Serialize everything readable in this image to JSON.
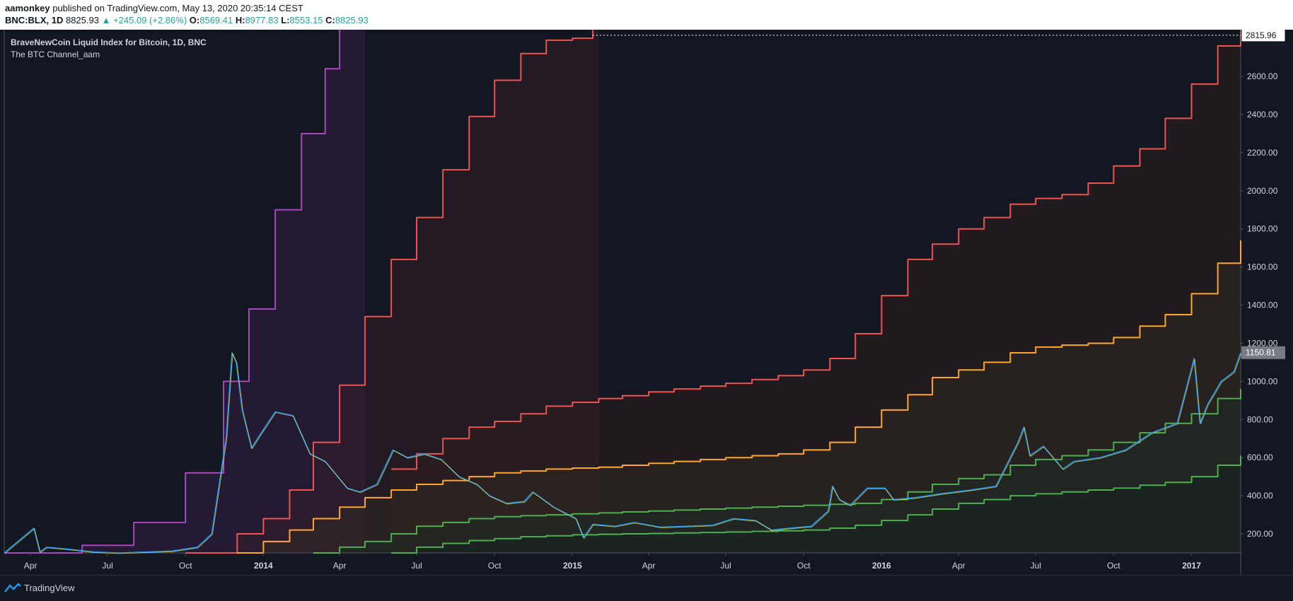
{
  "header": {
    "author": "aamonkey",
    "published_text": "published on TradingView.com, May 13, 2020 20:35:14 CEST",
    "symbol": "BNC:BLX, 1D",
    "last": "8825.93",
    "change": "▲ +245.09 (+2.86%)",
    "o_label": "O:",
    "o_value": "8569.41",
    "h_label": "H:",
    "h_value": "8977.83",
    "l_label": "L:",
    "l_value": "8553.15",
    "c_label": "C:",
    "c_value": "8825.93"
  },
  "legend": {
    "title": "BraveNewCoin Liquid Index for Bitcoin, 1D, BNC",
    "indicator": "The BTC Channel_aam"
  },
  "footer": {
    "brand": "TradingView"
  },
  "colors": {
    "background": "#131722",
    "purple": "#ab47bc",
    "red": "#ef5350",
    "orange": "#ffa726",
    "green": "#4caf50",
    "candle_up": "#2196f3",
    "candle_down": "#ffeb3b"
  },
  "chart_data": {
    "type": "line",
    "title": "BraveNewCoin Liquid Index for Bitcoin, 1D, BNC",
    "ylim": [
      100,
      2860
    ],
    "xlim": [
      "2013-03-01",
      "2017-02-28"
    ],
    "y_ticks": [
      200,
      400,
      600,
      800,
      1000,
      1200,
      1400,
      1600,
      1800,
      2000,
      2200,
      2400,
      2600
    ],
    "y_tick_labels": [
      "200.00",
      "400.00",
      "600.00",
      "800.00",
      "1000.00",
      "1200.00",
      "1400.00",
      "1600.00",
      "1800.00",
      "2000.00",
      "2200.00",
      "2400.00",
      "2600.00"
    ],
    "x_ticks": [
      "2013-04",
      "2013-07",
      "2013-10",
      "2014-01",
      "2014-04",
      "2014-07",
      "2014-10",
      "2015-01",
      "2015-04",
      "2015-07",
      "2015-10",
      "2016-01",
      "2016-04",
      "2016-07",
      "2016-10",
      "2017-01"
    ],
    "x_tick_labels": [
      "Apr",
      "Jul",
      "Oct",
      "2014",
      "Apr",
      "Jul",
      "Oct",
      "2015",
      "Apr",
      "Jul",
      "Oct",
      "2016",
      "Apr",
      "Jul",
      "Oct",
      "2017"
    ],
    "price_labels": [
      {
        "value": 2815.96,
        "text": "2815.96"
      },
      {
        "value": 1150.81,
        "text": "1150.81"
      }
    ],
    "series": [
      {
        "color": "#ab47bc",
        "x": [
          "2013-03-01",
          "2013-06-01",
          "2013-08-01",
          "2013-10-01",
          "2013-11-15",
          "2013-12-15",
          "2014-01-15",
          "2014-02-15",
          "2014-03-15",
          "2014-04-01",
          "2014-05-01"
        ],
        "y": [
          100,
          140,
          260,
          520,
          1000,
          1380,
          1900,
          2300,
          2640,
          2860,
          2860
        ]
      },
      {
        "color": "#ef5350",
        "x": [
          "2013-10-01",
          "2013-12-01",
          "2014-01-01",
          "2014-02-01",
          "2014-03-01",
          "2014-04-01",
          "2014-05-01",
          "2014-06-01",
          "2014-07-01",
          "2014-08-01",
          "2014-09-01",
          "2014-10-01",
          "2014-11-01",
          "2014-12-01",
          "2015-01-01",
          "2015-01-25",
          "2015-02-01"
        ],
        "y": [
          100,
          200,
          280,
          430,
          680,
          980,
          1340,
          1640,
          1860,
          2110,
          2390,
          2580,
          2720,
          2790,
          2800,
          2860,
          2860
        ]
      },
      {
        "color": "#ef5350",
        "x": [
          "2014-06-01",
          "2014-07-01",
          "2014-08-01",
          "2014-09-01",
          "2014-10-01",
          "2014-11-01",
          "2014-12-01",
          "2015-01-01",
          "2015-02-01",
          "2015-03-01",
          "2015-04-01",
          "2015-05-01",
          "2015-06-01",
          "2015-07-01",
          "2015-08-01",
          "2015-09-01",
          "2015-10-01",
          "2015-11-01",
          "2015-12-01",
          "2016-01-01",
          "2016-02-01",
          "2016-03-01",
          "2016-04-01",
          "2016-05-01",
          "2016-06-01",
          "2016-07-01",
          "2016-08-01",
          "2016-09-01",
          "2016-10-01",
          "2016-11-01",
          "2016-12-01",
          "2017-01-01",
          "2017-02-01",
          "2017-02-28"
        ],
        "y": [
          540,
          620,
          700,
          760,
          790,
          830,
          870,
          890,
          910,
          925,
          945,
          960,
          975,
          990,
          1010,
          1030,
          1060,
          1120,
          1250,
          1450,
          1640,
          1720,
          1800,
          1860,
          1930,
          1960,
          1980,
          2040,
          2130,
          2220,
          2380,
          2560,
          2760,
          2840
        ]
      },
      {
        "color": "#ffa726",
        "x": [
          "2013-12-01",
          "2014-01-01",
          "2014-02-01",
          "2014-03-01",
          "2014-04-01",
          "2014-05-01",
          "2014-06-01",
          "2014-07-01",
          "2014-08-01",
          "2014-09-01",
          "2014-10-01",
          "2014-11-01",
          "2014-12-01",
          "2015-01-01",
          "2015-02-01",
          "2015-03-01",
          "2015-04-01",
          "2015-05-01",
          "2015-06-01",
          "2015-07-01",
          "2015-08-01",
          "2015-09-01",
          "2015-10-01",
          "2015-11-01",
          "2015-12-01",
          "2016-01-01",
          "2016-02-01",
          "2016-03-01",
          "2016-04-01",
          "2016-05-01",
          "2016-06-01",
          "2016-07-01",
          "2016-08-01",
          "2016-09-01",
          "2016-10-01",
          "2016-11-01",
          "2016-12-01",
          "2017-01-01",
          "2017-02-01",
          "2017-02-28"
        ],
        "y": [
          100,
          160,
          220,
          280,
          340,
          390,
          430,
          460,
          480,
          500,
          520,
          530,
          540,
          545,
          550,
          560,
          570,
          580,
          590,
          600,
          610,
          620,
          640,
          680,
          760,
          850,
          930,
          1020,
          1060,
          1100,
          1150,
          1180,
          1190,
          1200,
          1230,
          1290,
          1350,
          1460,
          1620,
          1740
        ]
      },
      {
        "color": "#4caf50",
        "x": [
          "2014-03-01",
          "2014-04-01",
          "2014-05-01",
          "2014-06-01",
          "2014-07-01",
          "2014-08-01",
          "2014-09-01",
          "2014-10-01",
          "2014-11-01",
          "2014-12-01",
          "2015-01-01",
          "2015-02-01",
          "2015-03-01",
          "2015-04-01",
          "2015-05-01",
          "2015-06-01",
          "2015-07-01",
          "2015-08-01",
          "2015-09-01",
          "2015-10-01",
          "2015-11-01",
          "2015-12-01",
          "2016-01-01",
          "2016-02-01",
          "2016-03-01",
          "2016-04-01",
          "2016-05-01",
          "2016-06-01",
          "2016-07-01",
          "2016-08-01",
          "2016-09-01",
          "2016-10-01",
          "2016-11-01",
          "2016-12-01",
          "2017-01-01",
          "2017-02-01",
          "2017-02-28"
        ],
        "y": [
          100,
          130,
          160,
          200,
          240,
          260,
          280,
          290,
          295,
          300,
          305,
          310,
          315,
          320,
          325,
          330,
          335,
          340,
          345,
          350,
          355,
          360,
          380,
          420,
          460,
          490,
          510,
          560,
          590,
          610,
          640,
          680,
          730,
          780,
          830,
          910,
          960
        ]
      },
      {
        "color": "#4caf50",
        "x": [
          "2014-06-01",
          "2014-07-01",
          "2014-08-01",
          "2014-09-01",
          "2014-10-01",
          "2014-11-01",
          "2014-12-01",
          "2015-01-01",
          "2015-02-01",
          "2015-03-01",
          "2015-04-01",
          "2015-05-01",
          "2015-06-01",
          "2015-07-01",
          "2015-08-01",
          "2015-09-01",
          "2015-10-01",
          "2015-11-01",
          "2015-12-01",
          "2016-01-01",
          "2016-02-01",
          "2016-03-01",
          "2016-04-01",
          "2016-05-01",
          "2016-06-01",
          "2016-07-01",
          "2016-08-01",
          "2016-09-01",
          "2016-10-01",
          "2016-11-01",
          "2016-12-01",
          "2017-01-01",
          "2017-02-01",
          "2017-02-28"
        ],
        "y": [
          100,
          130,
          150,
          165,
          175,
          185,
          190,
          195,
          198,
          200,
          202,
          205,
          207,
          210,
          213,
          216,
          220,
          230,
          245,
          270,
          300,
          330,
          360,
          380,
          400,
          410,
          420,
          430,
          440,
          455,
          470,
          500,
          560,
          610
        ]
      },
      {
        "color": "#2196f3",
        "x": [
          "2013-03-01",
          "2013-04-05",
          "2013-04-12",
          "2013-04-20",
          "2013-05-15",
          "2013-06-15",
          "2013-07-15",
          "2013-08-15",
          "2013-09-15",
          "2013-10-15",
          "2013-11-01",
          "2013-11-18",
          "2013-11-25",
          "2013-11-30",
          "2013-12-07",
          "2013-12-18",
          "2013-12-28",
          "2014-01-15",
          "2014-02-05",
          "2014-02-25",
          "2014-03-15",
          "2014-04-10",
          "2014-04-25",
          "2014-05-15",
          "2014-06-03",
          "2014-06-20",
          "2014-07-10",
          "2014-07-30",
          "2014-08-20",
          "2014-09-10",
          "2014-09-25",
          "2014-10-15",
          "2014-11-05",
          "2014-11-15",
          "2014-12-10",
          "2015-01-05",
          "2015-01-14",
          "2015-01-25",
          "2015-02-20",
          "2015-03-15",
          "2015-04-15",
          "2015-05-15",
          "2015-06-15",
          "2015-07-10",
          "2015-08-05",
          "2015-08-24",
          "2015-09-15",
          "2015-10-10",
          "2015-10-30",
          "2015-11-04",
          "2015-11-12",
          "2015-11-25",
          "2015-12-15",
          "2016-01-05",
          "2016-01-15",
          "2016-02-10",
          "2016-03-10",
          "2016-04-15",
          "2016-05-15",
          "2016-06-10",
          "2016-06-17",
          "2016-06-24",
          "2016-07-10",
          "2016-08-02",
          "2016-08-15",
          "2016-09-15",
          "2016-10-15",
          "2016-11-15",
          "2016-12-15",
          "2017-01-04",
          "2017-01-11",
          "2017-01-20",
          "2017-02-05",
          "2017-02-20",
          "2017-02-28"
        ],
        "y": [
          100,
          230,
          105,
          130,
          120,
          105,
          100,
          105,
          110,
          130,
          200,
          700,
          1150,
          1100,
          850,
          650,
          720,
          840,
          820,
          620,
          580,
          440,
          420,
          460,
          640,
          600,
          620,
          590,
          500,
          460,
          400,
          360,
          370,
          420,
          340,
          280,
          180,
          250,
          240,
          260,
          235,
          240,
          245,
          280,
          270,
          220,
          230,
          240,
          320,
          450,
          380,
          350,
          440,
          440,
          380,
          390,
          410,
          430,
          450,
          680,
          760,
          610,
          660,
          540,
          580,
          600,
          640,
          730,
          780,
          1120,
          780,
          880,
          1000,
          1050,
          1150
        ]
      }
    ]
  }
}
